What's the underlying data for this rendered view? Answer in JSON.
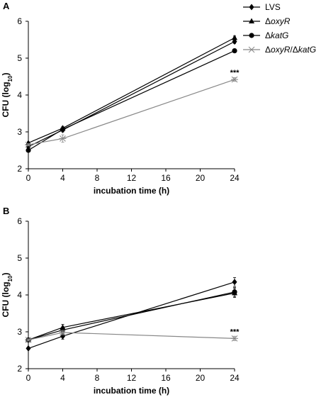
{
  "legend": [
    {
      "label": "LVS",
      "marker": "diamond"
    },
    {
      "label": "ΔoxyR",
      "marker": "triangle"
    },
    {
      "label": "ΔkatG",
      "marker": "circle"
    },
    {
      "label": "ΔoxyR/ΔkatG",
      "marker": "star"
    }
  ],
  "chart_data": [
    {
      "type": "line",
      "panel": "A",
      "xlabel": "incubation time (h)",
      "ylabel": "CFU (log10)",
      "x_ticks": [
        0,
        4,
        8,
        12,
        16,
        20,
        24
      ],
      "y_ticks": [
        2,
        3,
        4,
        5,
        6
      ],
      "xlim": [
        0,
        24
      ],
      "ylim": [
        2,
        6
      ],
      "x": [
        0,
        4,
        24
      ],
      "series": [
        {
          "name": "LVS",
          "marker": "diamond",
          "color": "#000000",
          "values": [
            2.6,
            3.05,
            5.45
          ],
          "errors": [
            0.03,
            0.05,
            0.05
          ]
        },
        {
          "name": "ΔoxyR",
          "marker": "triangle",
          "color": "#000000",
          "values": [
            2.7,
            3.1,
            5.55
          ],
          "errors": [
            0.03,
            0.05,
            0.05
          ]
        },
        {
          "name": "ΔkatG",
          "marker": "circle",
          "color": "#000000",
          "values": [
            2.5,
            3.07,
            5.2
          ],
          "errors": [
            0.03,
            0.05,
            0.05
          ]
        },
        {
          "name": "ΔoxyR/ΔkatG",
          "marker": "star",
          "color": "#888888",
          "values": [
            2.65,
            2.82,
            4.42
          ],
          "errors": [
            0.03,
            0.1,
            0.05
          ]
        }
      ],
      "annotations": [
        {
          "text": "***",
          "x": 24,
          "y": 4.42
        }
      ]
    },
    {
      "type": "line",
      "panel": "B",
      "xlabel": "incubation time (h)",
      "ylabel": "CFU (log10)",
      "x_ticks": [
        0,
        4,
        8,
        12,
        16,
        20,
        24
      ],
      "y_ticks": [
        2,
        3,
        4,
        5,
        6
      ],
      "xlim": [
        0,
        24
      ],
      "ylim": [
        2,
        6
      ],
      "x": [
        0,
        4,
        24
      ],
      "series": [
        {
          "name": "LVS",
          "marker": "diamond",
          "color": "#000000",
          "values": [
            2.55,
            2.88,
            4.35
          ],
          "errors": [
            0.03,
            0.08,
            0.12
          ]
        },
        {
          "name": "ΔoxyR",
          "marker": "triangle",
          "color": "#000000",
          "values": [
            2.78,
            3.12,
            4.05
          ],
          "errors": [
            0.03,
            0.08,
            0.12
          ]
        },
        {
          "name": "ΔkatG",
          "marker": "circle",
          "color": "#000000",
          "values": [
            2.78,
            3.05,
            4.08
          ],
          "errors": [
            0.03,
            0.06,
            0.12
          ]
        },
        {
          "name": "ΔoxyR/ΔkatG",
          "marker": "star",
          "color": "#888888",
          "values": [
            2.78,
            2.98,
            2.82
          ],
          "errors": [
            0.03,
            0.06,
            0.06
          ]
        }
      ],
      "annotations": [
        {
          "text": "***",
          "x": 24,
          "y": 2.82
        }
      ]
    }
  ]
}
